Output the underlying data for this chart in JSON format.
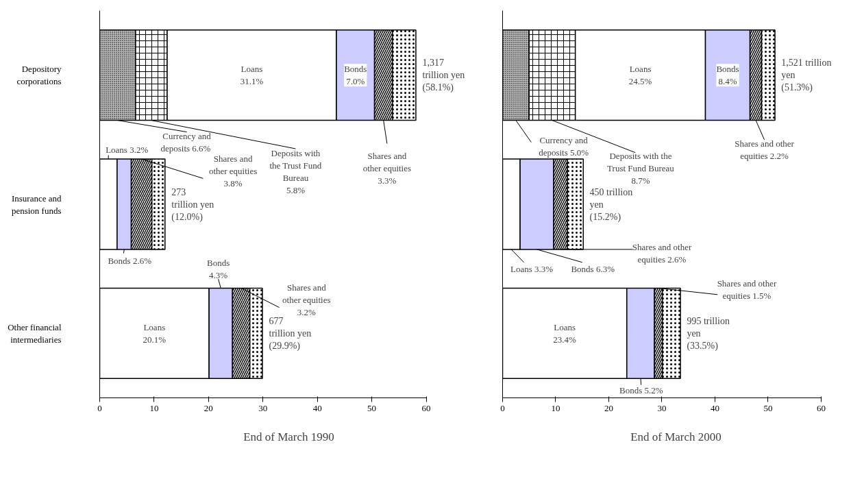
{
  "chart_data": [
    {
      "type": "bar",
      "orientation": "horizontal",
      "stacked": true,
      "xlabel": "End of March 1990",
      "categories": [
        "Depository\ncorporations",
        "Insurance and\npension funds",
        "Other financial\nintermediaries"
      ],
      "xlim": [
        0,
        60
      ],
      "xticks": [
        0,
        10,
        20,
        30,
        40,
        50,
        60
      ],
      "grid": false,
      "series": [
        {
          "color": "#bbbbbb",
          "values": [
            6.6,
            0,
            0
          ],
          "value_labels": [
            "Currency and\ndeposits  6.6%",
            null,
            null
          ]
        },
        {
          "color": "#ffffff",
          "values": [
            5.8,
            0,
            0
          ],
          "value_labels": [
            "Deposits with\nthe Trust Fund\nBureau\n5.8%",
            null,
            null
          ]
        },
        {
          "color": "#ffffff",
          "values": [
            31.1,
            3.2,
            20.1
          ],
          "value_labels": [
            "Loans\n31.1%",
            "Loans 3.2%",
            "Loans\n20.1%"
          ]
        },
        {
          "color": "#ccccff",
          "values": [
            7.0,
            2.6,
            4.3
          ],
          "value_labels": [
            "Bonds\n7.0%",
            "Bonds 2.6%",
            "Bonds\n4.3%"
          ]
        },
        {
          "color": "#ffffff",
          "values": [
            3.3,
            3.8,
            3.2
          ],
          "value_labels": [
            "Shares and\nother equities\n3.3%",
            "Shares and\nother equities\n3.8%",
            "Shares and\nother equities\n3.2%"
          ]
        },
        {
          "color": "#ffffff",
          "values": [
            4.3,
            2.4,
            2.3
          ]
        }
      ],
      "totals": [
        "1,317\ntrillion yen\n(58.1%)",
        "273\ntrillion yen\n(12.0%)",
        "677\ntrillion yen\n(29.9%)"
      ]
    },
    {
      "type": "bar",
      "orientation": "horizontal",
      "stacked": true,
      "xlabel": "End of March 2000",
      "categories": [
        null,
        null,
        null
      ],
      "xlim": [
        0,
        60
      ],
      "xticks": [
        0,
        10,
        20,
        30,
        40,
        50,
        60
      ],
      "grid": false,
      "series": [
        {
          "color": "#bbbbbb",
          "values": [
            5.0,
            0,
            0
          ],
          "value_labels": [
            "Currency and\ndeposits 5.0%",
            null,
            null
          ]
        },
        {
          "color": "#ffffff",
          "values": [
            8.7,
            0,
            0
          ],
          "value_labels": [
            "Deposits with the\nTrust Fund Bureau\n8.7%",
            null,
            null
          ]
        },
        {
          "color": "#ffffff",
          "values": [
            24.5,
            3.3,
            23.4
          ],
          "value_labels": [
            "Loans\n24.5%",
            "Loans 3.3%",
            "Loans\n23.4%"
          ]
        },
        {
          "color": "#ccccff",
          "values": [
            8.4,
            6.3,
            5.2
          ],
          "value_labels": [
            "Bonds\n8.4%",
            "Bonds 6.3%",
            "Bonds 5.2%"
          ]
        },
        {
          "color": "#ffffff",
          "values": [
            2.2,
            2.6,
            1.5
          ],
          "value_labels": [
            "Shares and other\nequities 2.2%",
            "Shares and other\nequities 2.6%",
            "Shares and other\nequities 1.5%"
          ]
        },
        {
          "color": "#ffffff",
          "values": [
            2.5,
            3.0,
            3.4
          ]
        }
      ],
      "totals": [
        "1,521 trillion\nyen\n(51.3%)",
        "450 trillion\nyen\n(15.2%)",
        "995 trillion\nyen\n(33.5%)"
      ]
    }
  ]
}
